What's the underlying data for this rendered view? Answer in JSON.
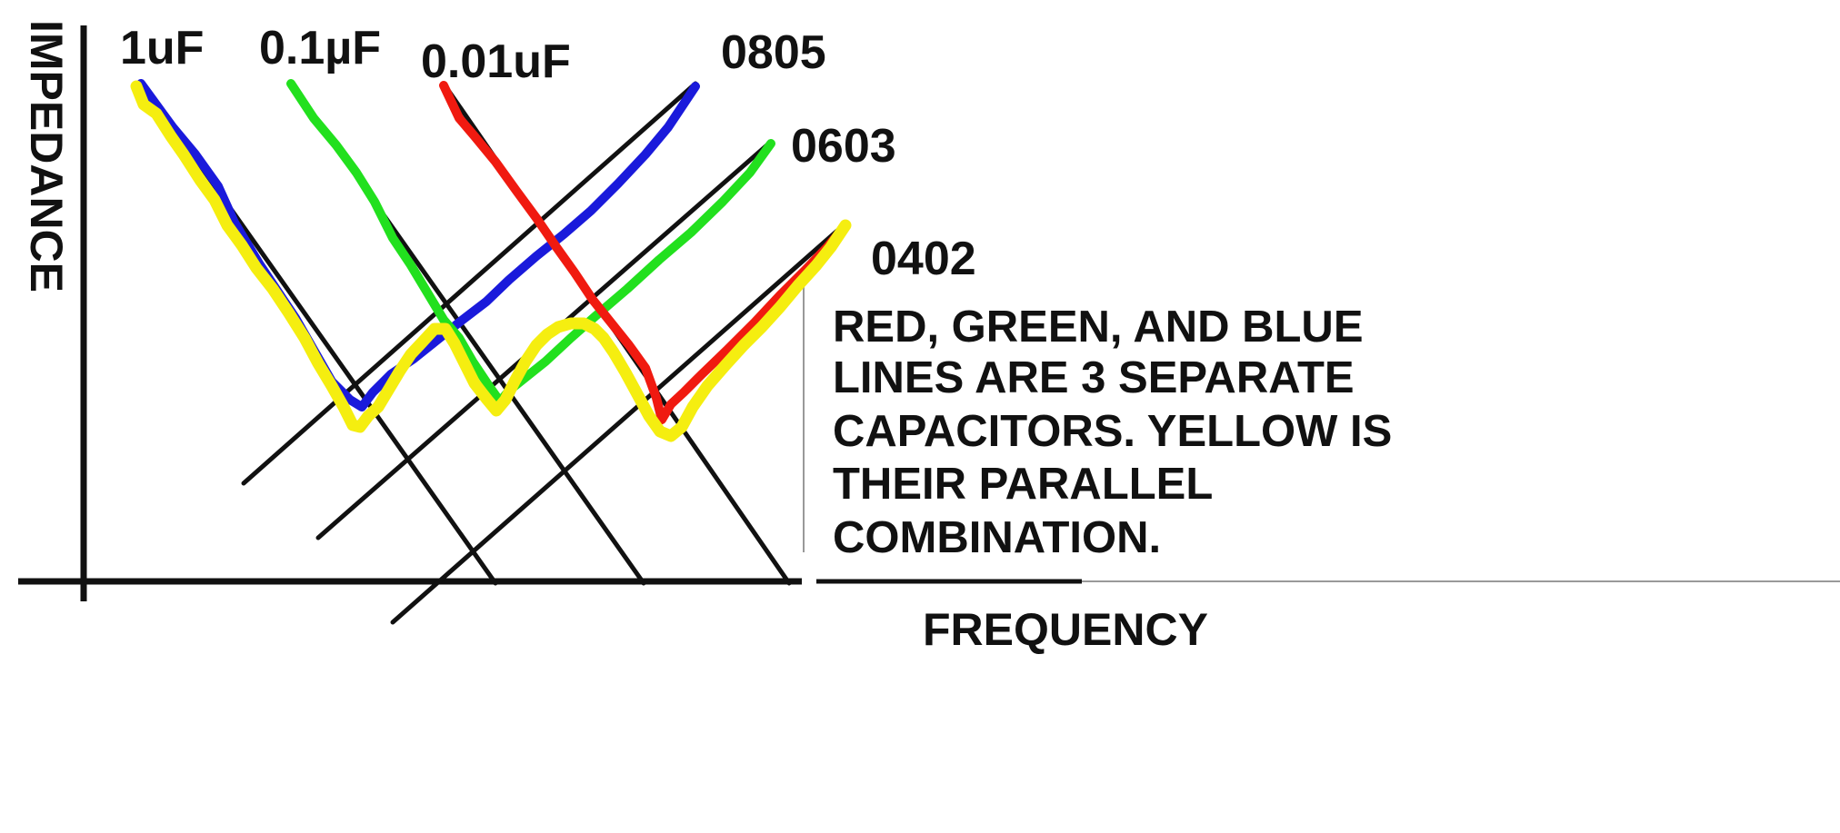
{
  "chart_data": {
    "type": "line",
    "xlabel": "FREQUENCY",
    "ylabel": "IMPEDANCE",
    "scale": "log-log (conceptual, no numeric ticks)",
    "capacitance_labels": [
      "1uF",
      "0.1µF",
      "0.01uF"
    ],
    "package_labels": [
      "0805",
      "0603",
      "0402"
    ],
    "series": [
      {
        "name": "1uF",
        "color": "#1a1adb"
      },
      {
        "name": "0.1µF",
        "color": "#22e01e"
      },
      {
        "name": "0.01uF",
        "color": "#f01a10"
      },
      {
        "name": "",
        "color": "#f5ee10"
      }
    ],
    "colors": {
      "blue": "#1a1adb",
      "green": "#22e01e",
      "red": "#f01a10",
      "yellow": "#f5ee10",
      "asymptote": "#111111",
      "divider": "#999999"
    },
    "annotation": [
      "RED, GREEN, AND BLUE",
      "LINES ARE 3 SEPARATE",
      "CAPACITORS. YELLOW IS",
      "THEIR PARALLEL",
      "COMBINATION."
    ]
  }
}
